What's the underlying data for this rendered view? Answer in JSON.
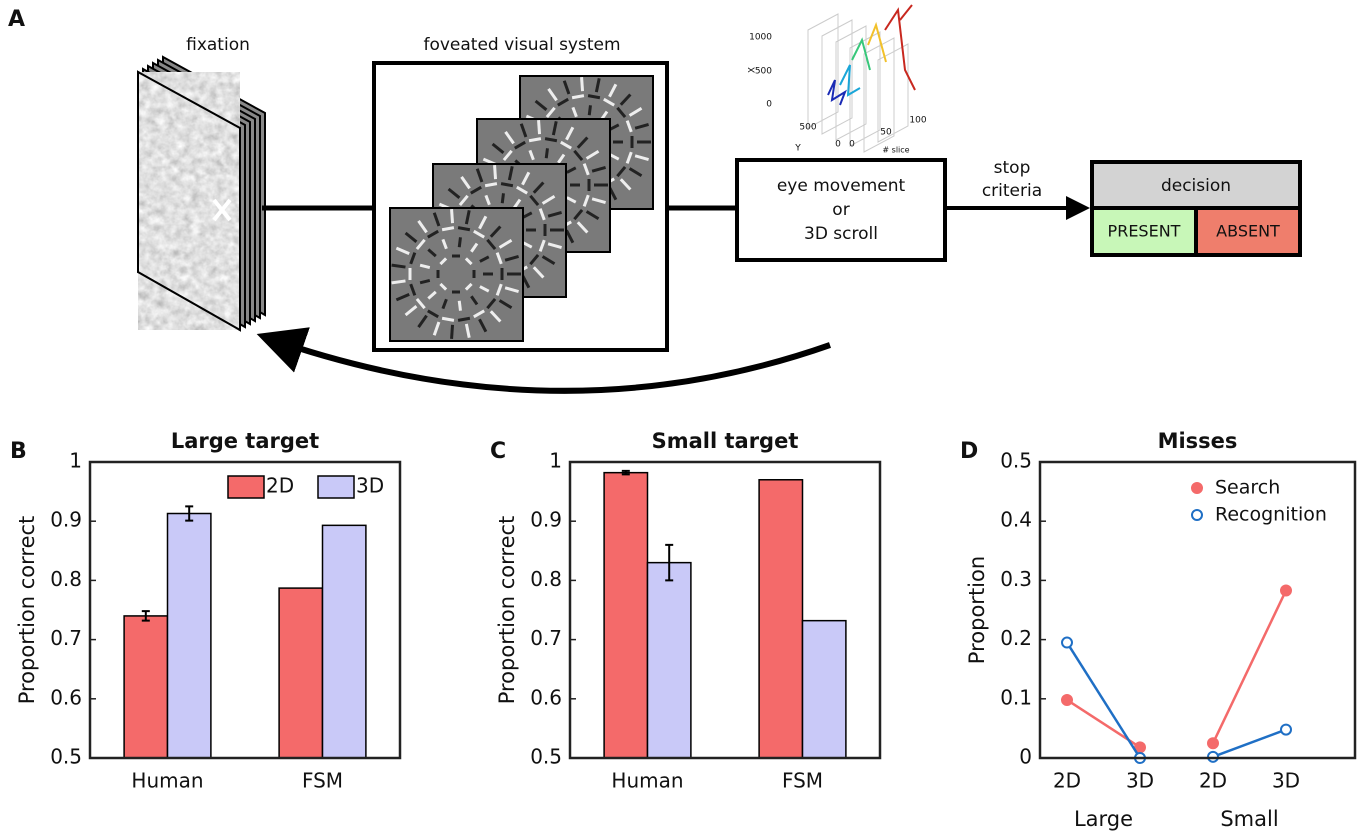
{
  "diagram": {
    "panel_letter": "A",
    "fixation_label": "fixation",
    "foveated_label": "foveated visual system",
    "inset": {
      "x_label": "X",
      "y_label": "Y",
      "z_label": "# slice",
      "x_ticks": [
        "1000",
        "500",
        "0"
      ],
      "y_ticks": [
        "500",
        "0"
      ],
      "z_ticks": [
        "0",
        "50",
        "100"
      ]
    },
    "process_box": [
      "eye movement",
      "or",
      "3D scroll"
    ],
    "stop_label": [
      "stop",
      "criteria"
    ],
    "decision": {
      "title": "decision",
      "present": "PRESENT",
      "absent": "ABSENT"
    }
  },
  "chart_data": [
    {
      "type": "bar",
      "panel_letter": "B",
      "title": "Large target",
      "ylabel": "Proportion correct",
      "categories": [
        "Human",
        "FSM"
      ],
      "series": [
        {
          "name": "2D",
          "color": "#f46a6a",
          "values": [
            0.74,
            0.787
          ],
          "errors": [
            0.008,
            null
          ]
        },
        {
          "name": "3D",
          "color": "#c9c9f8",
          "values": [
            0.913,
            0.893
          ],
          "errors": [
            0.012,
            null
          ]
        }
      ],
      "ylim": [
        0.5,
        1
      ],
      "yticks": [
        0.5,
        0.6,
        0.7,
        0.8,
        0.9,
        1
      ],
      "legend": true
    },
    {
      "type": "bar",
      "panel_letter": "C",
      "title": "Small target",
      "ylabel": "Proportion correct",
      "categories": [
        "Human",
        "FSM"
      ],
      "series": [
        {
          "name": "2D",
          "color": "#f46a6a",
          "values": [
            0.982,
            0.97
          ],
          "errors": [
            0.003,
            null
          ]
        },
        {
          "name": "3D",
          "color": "#c9c9f8",
          "values": [
            0.83,
            0.732
          ],
          "errors": [
            0.03,
            null
          ]
        }
      ],
      "ylim": [
        0.5,
        1
      ],
      "yticks": [
        0.5,
        0.6,
        0.7,
        0.8,
        0.9,
        1
      ],
      "legend": false
    },
    {
      "type": "line",
      "panel_letter": "D",
      "title": "Misses",
      "ylabel": "Proportion",
      "categories": [
        "2D",
        "3D",
        "2D",
        "3D"
      ],
      "groups": [
        "Large",
        "Small"
      ],
      "series": [
        {
          "name": "Search",
          "color": "#f46a6a",
          "marker": "filled",
          "values": [
            0.098,
            0.018,
            0.025,
            0.283
          ]
        },
        {
          "name": "Recognition",
          "color": "#1f6fc5",
          "marker": "open",
          "values": [
            0.195,
            0,
            0.002,
            0.048
          ]
        }
      ],
      "ylim": [
        0,
        0.5
      ],
      "yticks": [
        0,
        0.1,
        0.2,
        0.3,
        0.4,
        0.5
      ],
      "legend": true
    }
  ]
}
